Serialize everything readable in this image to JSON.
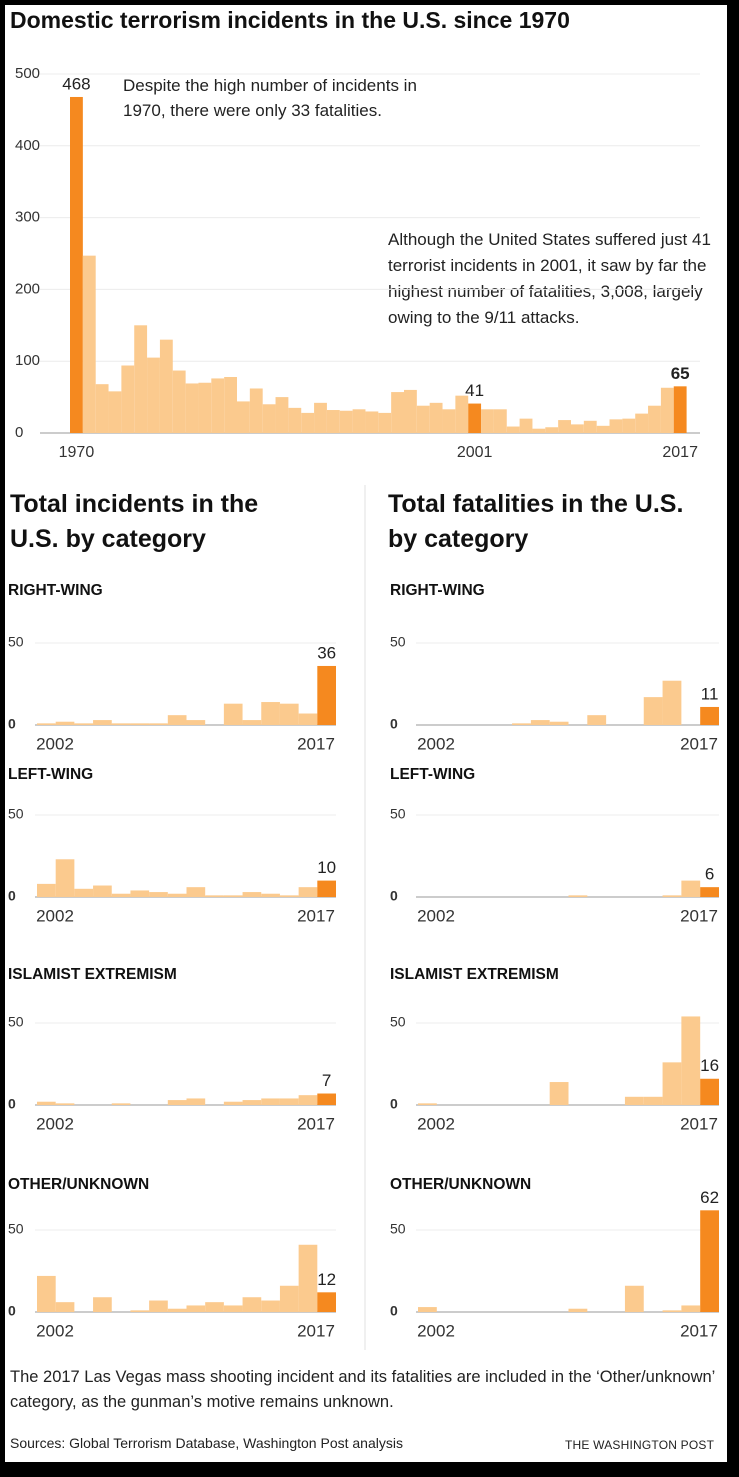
{
  "title": "Domestic terrorism incidents in the U.S. since 1970",
  "panels": [
    "Total incidents in the U.S. by category",
    "Total fatalities in the U.S. by category"
  ],
  "note": "The 2017 Las Vegas mass shooting incident and its fatalities are included in the ‘Other/unknown’ category, as the gunman’s motive remains unknown.",
  "source": "Sources: Global Terrorism Database, Washington Post analysis",
  "credit": "THE WASHINGTON POST",
  "chart_data": [
    {
      "type": "bar",
      "x": [
        1970,
        1971,
        1972,
        1973,
        1974,
        1975,
        1976,
        1977,
        1978,
        1979,
        1980,
        1981,
        1982,
        1983,
        1984,
        1985,
        1986,
        1987,
        1988,
        1989,
        1990,
        1991,
        1992,
        1993,
        1994,
        1995,
        1996,
        1997,
        1998,
        1999,
        2000,
        2001,
        2002,
        2003,
        2004,
        2005,
        2006,
        2007,
        2008,
        2009,
        2010,
        2011,
        2012,
        2013,
        2014,
        2015,
        2016,
        2017
      ],
      "values": [
        468,
        247,
        68,
        58,
        94,
        150,
        105,
        130,
        87,
        69,
        70,
        76,
        78,
        44,
        62,
        40,
        50,
        35,
        28,
        42,
        32,
        31,
        33,
        30,
        28,
        57,
        60,
        38,
        42,
        33,
        52,
        41,
        33,
        33,
        9,
        20,
        6,
        8,
        18,
        12,
        17,
        10,
        19,
        20,
        27,
        38,
        63,
        65
      ],
      "xlim": [
        1969.5,
        2017.5
      ],
      "xticks": [
        1970,
        2001,
        2017
      ],
      "ylim": [
        0,
        500
      ],
      "yticks": [
        0,
        100,
        200,
        300,
        400,
        500
      ],
      "grid": true,
      "color": "#fbca8e",
      "highlight": [
        0,
        31,
        47
      ],
      "highlight_color": "#f5891f",
      "annotations": [
        "Despite the high number of incidents in 1970, there were only 33 fatalities.",
        "Although the United States suffered just 41 terrorist incidents in 2001, it saw by far the highest number of fatalities, 3,008, largely owing to the 9/11 attacks."
      ]
    },
    {
      "type": "bar",
      "title": "RIGHT-WING",
      "x": [
        2002,
        2003,
        2004,
        2005,
        2006,
        2007,
        2008,
        2009,
        2010,
        2011,
        2012,
        2013,
        2014,
        2015,
        2016,
        2017
      ],
      "values": [
        1,
        2,
        1,
        3,
        1,
        1,
        1,
        6,
        3,
        0,
        13,
        3,
        14,
        13,
        7,
        36
      ],
      "xlim": [
        2001.5,
        2017.5
      ],
      "xticks": [
        2002,
        2017
      ],
      "ylim": [
        0,
        65
      ],
      "yticks": [
        0,
        50
      ],
      "grid": true,
      "color": "#fbca8e",
      "highlight": [
        15
      ],
      "highlight_color": "#f5891f"
    },
    {
      "type": "bar",
      "title": "LEFT-WING",
      "x": [
        2002,
        2003,
        2004,
        2005,
        2006,
        2007,
        2008,
        2009,
        2010,
        2011,
        2012,
        2013,
        2014,
        2015,
        2016,
        2017
      ],
      "values": [
        8,
        23,
        5,
        7,
        2,
        4,
        3,
        2,
        6,
        1,
        1,
        3,
        2,
        1,
        6,
        10
      ],
      "xlim": [
        2001.5,
        2017.5
      ],
      "xticks": [
        2002,
        2017
      ],
      "ylim": [
        0,
        65
      ],
      "yticks": [
        0,
        50
      ],
      "grid": true,
      "color": "#fbca8e",
      "highlight": [
        15
      ],
      "highlight_color": "#f5891f"
    },
    {
      "type": "bar",
      "title": "ISLAMIST EXTREMISM",
      "x": [
        2002,
        2003,
        2004,
        2005,
        2006,
        2007,
        2008,
        2009,
        2010,
        2011,
        2012,
        2013,
        2014,
        2015,
        2016,
        2017
      ],
      "values": [
        2,
        1,
        0,
        0,
        1,
        0,
        0,
        3,
        4,
        0,
        2,
        3,
        4,
        4,
        6,
        7
      ],
      "xlim": [
        2001.5,
        2017.5
      ],
      "xticks": [
        2002,
        2017
      ],
      "ylim": [
        0,
        65
      ],
      "yticks": [
        0,
        50
      ],
      "grid": true,
      "color": "#fbca8e",
      "highlight": [
        15
      ],
      "highlight_color": "#f5891f"
    },
    {
      "type": "bar",
      "title": "OTHER/UNKNOWN",
      "x": [
        2002,
        2003,
        2004,
        2005,
        2006,
        2007,
        2008,
        2009,
        2010,
        2011,
        2012,
        2013,
        2014,
        2015,
        2016,
        2017
      ],
      "values": [
        22,
        6,
        0,
        9,
        0,
        1,
        7,
        2,
        4,
        6,
        4,
        9,
        7,
        16,
        41,
        12
      ],
      "xlim": [
        2001.5,
        2017.5
      ],
      "xticks": [
        2002,
        2017
      ],
      "ylim": [
        0,
        65
      ],
      "yticks": [
        0,
        50
      ],
      "grid": true,
      "color": "#fbca8e",
      "highlight": [
        15
      ],
      "highlight_color": "#f5891f"
    },
    {
      "type": "bar",
      "title": "RIGHT-WING",
      "x": [
        2002,
        2003,
        2004,
        2005,
        2006,
        2007,
        2008,
        2009,
        2010,
        2011,
        2012,
        2013,
        2014,
        2015,
        2016,
        2017
      ],
      "values": [
        0,
        0,
        0,
        0,
        0,
        1,
        3,
        2,
        0,
        6,
        0,
        0,
        17,
        27,
        0,
        11
      ],
      "xlim": [
        2001.5,
        2017.5
      ],
      "xticks": [
        2002,
        2017
      ],
      "ylim": [
        0,
        65
      ],
      "yticks": [
        0,
        50
      ],
      "grid": true,
      "color": "#fbca8e",
      "highlight": [
        15
      ],
      "highlight_color": "#f5891f"
    },
    {
      "type": "bar",
      "title": "LEFT-WING",
      "x": [
        2002,
        2003,
        2004,
        2005,
        2006,
        2007,
        2008,
        2009,
        2010,
        2011,
        2012,
        2013,
        2014,
        2015,
        2016,
        2017
      ],
      "values": [
        0,
        0,
        0,
        0,
        0,
        0,
        0,
        0,
        1,
        0,
        0,
        0,
        0,
        1,
        10,
        6
      ],
      "xlim": [
        2001.5,
        2017.5
      ],
      "xticks": [
        2002,
        2017
      ],
      "ylim": [
        0,
        65
      ],
      "yticks": [
        0,
        50
      ],
      "grid": true,
      "color": "#fbca8e",
      "highlight": [
        15
      ],
      "highlight_color": "#f5891f"
    },
    {
      "type": "bar",
      "title": "ISLAMIST EXTREMISM",
      "x": [
        2002,
        2003,
        2004,
        2005,
        2006,
        2007,
        2008,
        2009,
        2010,
        2011,
        2012,
        2013,
        2014,
        2015,
        2016,
        2017
      ],
      "values": [
        1,
        0,
        0,
        0,
        0,
        0,
        0,
        14,
        0,
        0,
        0,
        5,
        5,
        26,
        54,
        16
      ],
      "xlim": [
        2001.5,
        2017.5
      ],
      "xticks": [
        2002,
        2017
      ],
      "ylim": [
        0,
        65
      ],
      "yticks": [
        0,
        50
      ],
      "grid": true,
      "color": "#fbca8e",
      "highlight": [
        15
      ],
      "highlight_color": "#f5891f"
    },
    {
      "type": "bar",
      "title": "OTHER/UNKNOWN",
      "x": [
        2002,
        2003,
        2004,
        2005,
        2006,
        2007,
        2008,
        2009,
        2010,
        2011,
        2012,
        2013,
        2014,
        2015,
        2016,
        2017
      ],
      "values": [
        3,
        0,
        0,
        0,
        0,
        0,
        0,
        0,
        2,
        0,
        0,
        16,
        0,
        1,
        4,
        62
      ],
      "xlim": [
        2001.5,
        2017.5
      ],
      "xticks": [
        2002,
        2017
      ],
      "ylim": [
        0,
        65
      ],
      "yticks": [
        0,
        50
      ],
      "grid": true,
      "color": "#fbca8e",
      "highlight": [
        15
      ],
      "highlight_color": "#f5891f"
    }
  ]
}
